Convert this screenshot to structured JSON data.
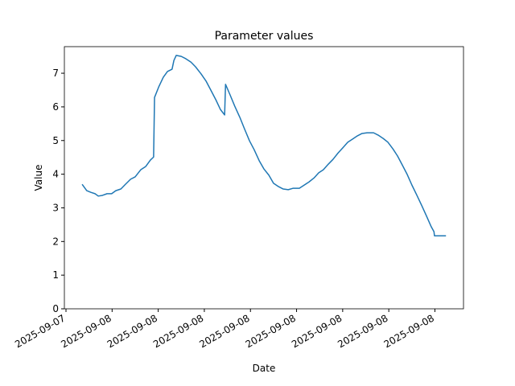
{
  "chart_data": {
    "type": "line",
    "title": "Parameter values",
    "x_label": "Date",
    "y_label": "Value",
    "x": [
      0.35,
      0.45,
      0.54,
      0.63,
      0.7,
      0.79,
      0.89,
      0.99,
      1.08,
      1.19,
      1.29,
      1.4,
      1.5,
      1.62,
      1.73,
      1.83,
      1.9,
      1.92,
      2.01,
      2.11,
      2.2,
      2.3,
      2.34,
      2.39,
      2.5,
      2.6,
      2.71,
      2.81,
      2.93,
      3.04,
      3.14,
      3.25,
      3.35,
      3.44,
      3.46,
      3.56,
      3.66,
      3.77,
      3.87,
      3.98,
      4.08,
      4.19,
      4.29,
      4.4,
      4.5,
      4.61,
      4.71,
      4.82,
      4.92,
      5.06,
      5.17,
      5.27,
      5.38,
      5.48,
      5.58,
      5.69,
      5.79,
      5.9,
      6.0,
      6.11,
      6.21,
      6.32,
      6.42,
      6.53,
      6.67,
      6.77,
      6.88,
      6.98,
      7.09,
      7.19,
      7.29,
      7.4,
      7.5,
      7.61,
      7.71,
      7.82,
      7.92,
      7.98,
      7.99,
      8.24
    ],
    "series": [
      {
        "name": "Value",
        "color": "#1f77b4",
        "values": [
          3.7,
          3.51,
          3.46,
          3.42,
          3.35,
          3.37,
          3.42,
          3.42,
          3.51,
          3.56,
          3.7,
          3.85,
          3.92,
          4.13,
          4.23,
          4.42,
          4.51,
          6.28,
          6.59,
          6.88,
          7.05,
          7.12,
          7.38,
          7.53,
          7.5,
          7.43,
          7.33,
          7.19,
          6.98,
          6.76,
          6.5,
          6.21,
          5.92,
          5.76,
          6.67,
          6.35,
          6.02,
          5.69,
          5.35,
          4.99,
          4.73,
          4.4,
          4.16,
          3.97,
          3.73,
          3.63,
          3.56,
          3.54,
          3.58,
          3.58,
          3.68,
          3.77,
          3.89,
          4.04,
          4.13,
          4.3,
          4.44,
          4.63,
          4.78,
          4.95,
          5.04,
          5.14,
          5.21,
          5.23,
          5.23,
          5.16,
          5.06,
          4.95,
          4.75,
          4.54,
          4.28,
          3.99,
          3.68,
          3.37,
          3.08,
          2.75,
          2.44,
          2.29,
          2.17,
          2.17
        ]
      }
    ],
    "xlim": [
      -0.035,
      8.62
    ],
    "ylim": [
      0,
      7.79
    ],
    "xticks": [
      {
        "value": 0,
        "label": "2025-09-07"
      },
      {
        "value": 1,
        "label": "2025-09-08"
      },
      {
        "value": 2,
        "label": "2025-09-08"
      },
      {
        "value": 3,
        "label": "2025-09-08"
      },
      {
        "value": 4,
        "label": "2025-09-08"
      },
      {
        "value": 5,
        "label": "2025-09-08"
      },
      {
        "value": 6,
        "label": "2025-09-08"
      },
      {
        "value": 7,
        "label": "2025-09-08"
      },
      {
        "value": 8,
        "label": "2025-09-08"
      }
    ],
    "yticks": [
      0,
      1,
      2,
      3,
      4,
      5,
      6,
      7
    ],
    "grid": false
  }
}
